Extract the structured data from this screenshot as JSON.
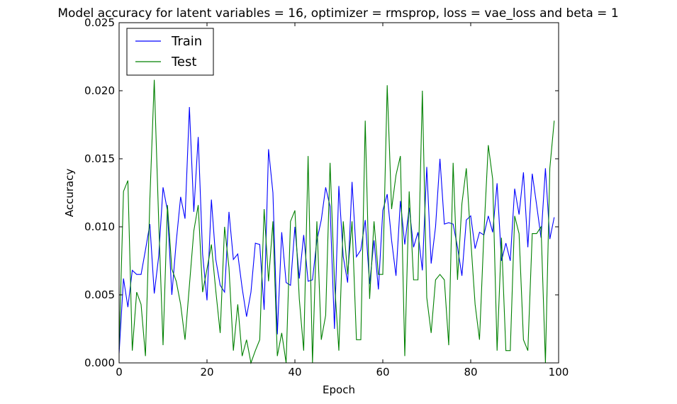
{
  "chart_data": {
    "type": "line",
    "title": "Model accuracy for latent variables = 16, optimizer = rmsprop, loss = vae_loss and beta = 1",
    "xlabel": "Epoch",
    "ylabel": "Accuracy",
    "xlim": [
      0,
      100
    ],
    "ylim": [
      0,
      0.025
    ],
    "xticks": [
      0,
      20,
      40,
      60,
      80,
      100
    ],
    "xtick_labels": [
      "0",
      "20",
      "40",
      "60",
      "80",
      "100"
    ],
    "yticks": [
      0,
      0.005,
      0.01,
      0.015,
      0.02,
      0.025
    ],
    "ytick_labels": [
      "0.000",
      "0.005",
      "0.010",
      "0.015",
      "0.020",
      "0.025"
    ],
    "grid": false,
    "legend_position": "top-left",
    "x": [
      0,
      1,
      2,
      3,
      4,
      5,
      6,
      7,
      8,
      9,
      10,
      11,
      12,
      13,
      14,
      15,
      16,
      17,
      18,
      19,
      20,
      21,
      22,
      23,
      24,
      25,
      26,
      27,
      28,
      29,
      30,
      31,
      32,
      33,
      34,
      35,
      36,
      37,
      38,
      39,
      40,
      41,
      42,
      43,
      44,
      45,
      46,
      47,
      48,
      49,
      50,
      51,
      52,
      53,
      54,
      55,
      56,
      57,
      58,
      59,
      60,
      61,
      62,
      63,
      64,
      65,
      66,
      67,
      68,
      69,
      70,
      71,
      72,
      73,
      74,
      75,
      76,
      77,
      78,
      79,
      80,
      81,
      82,
      83,
      84,
      85,
      86,
      87,
      88,
      89,
      90,
      91,
      92,
      93,
      94,
      95,
      96,
      97,
      98,
      99
    ],
    "series": [
      {
        "name": "Train",
        "color": "#0000ff",
        "values": [
          0.0007,
          0.0062,
          0.0041,
          0.0068,
          0.0065,
          0.0065,
          0.0083,
          0.0102,
          0.0051,
          0.0078,
          0.0129,
          0.0112,
          0.005,
          0.0089,
          0.0122,
          0.0106,
          0.0188,
          0.0111,
          0.0166,
          0.008,
          0.0046,
          0.012,
          0.0076,
          0.0057,
          0.0052,
          0.0111,
          0.0076,
          0.008,
          0.0055,
          0.0034,
          0.0052,
          0.0088,
          0.0087,
          0.0039,
          0.0157,
          0.0125,
          0.0021,
          0.0096,
          0.0059,
          0.0057,
          0.01,
          0.0062,
          0.0094,
          0.006,
          0.0061,
          0.009,
          0.0105,
          0.0129,
          0.0115,
          0.0025,
          0.013,
          0.0078,
          0.0059,
          0.0133,
          0.0078,
          0.0083,
          0.0105,
          0.0058,
          0.009,
          0.0054,
          0.0112,
          0.0124,
          0.009,
          0.0064,
          0.0119,
          0.0087,
          0.0114,
          0.0085,
          0.0096,
          0.0068,
          0.0144,
          0.0073,
          0.01,
          0.015,
          0.0102,
          0.0103,
          0.0102,
          0.0085,
          0.0064,
          0.0105,
          0.0108,
          0.0084,
          0.0096,
          0.0094,
          0.0108,
          0.0096,
          0.0132,
          0.0075,
          0.0088,
          0.0075,
          0.0128,
          0.0109,
          0.014,
          0.0085,
          0.0139,
          0.0116,
          0.0092,
          0.0143,
          0.0091,
          0.0107
        ]
      },
      {
        "name": "Test",
        "color": "#008000",
        "values": [
          0.001,
          0.0126,
          0.0134,
          0.0009,
          0.0052,
          0.0043,
          0.0005,
          0.012,
          0.0208,
          0.0105,
          0.0013,
          0.0116,
          0.0069,
          0.006,
          0.0043,
          0.0017,
          0.0057,
          0.0097,
          0.0116,
          0.0052,
          0.0069,
          0.0087,
          0.0053,
          0.0022,
          0.01,
          0.007,
          0.0009,
          0.0043,
          0.0005,
          0.0017,
          0.0,
          0.0009,
          0.0017,
          0.0113,
          0.006,
          0.0104,
          0.0005,
          0.0022,
          0.0,
          0.0104,
          0.0112,
          0.0047,
          0.0009,
          0.0152,
          0.0,
          0.0104,
          0.0017,
          0.0035,
          0.0147,
          0.006,
          0.0009,
          0.0104,
          0.0065,
          0.0104,
          0.0017,
          0.0017,
          0.0178,
          0.0047,
          0.0104,
          0.0065,
          0.0065,
          0.0204,
          0.0113,
          0.0138,
          0.0152,
          0.0005,
          0.0126,
          0.0061,
          0.0061,
          0.02,
          0.0048,
          0.0022,
          0.0061,
          0.0065,
          0.0061,
          0.0013,
          0.0147,
          0.0061,
          0.0117,
          0.0143,
          0.0091,
          0.0043,
          0.0017,
          0.0095,
          0.016,
          0.0135,
          0.0009,
          0.0092,
          0.0009,
          0.0009,
          0.0108,
          0.0095,
          0.0017,
          0.0009,
          0.0095,
          0.0095,
          0.01,
          0.0,
          0.0143,
          0.0178
        ]
      }
    ]
  }
}
